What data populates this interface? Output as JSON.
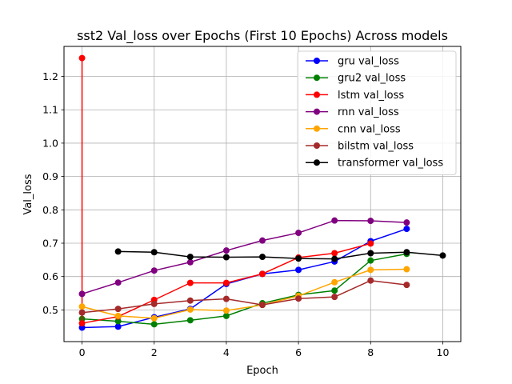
{
  "chart_data": {
    "type": "line",
    "title": "sst2 Val_loss over Epochs (First 10 Epochs) Across models",
    "xlabel": "Epoch",
    "ylabel": "Val_loss",
    "xlim": [
      -0.5,
      10.5
    ],
    "ylim": [
      0.405,
      1.29
    ],
    "xticks": [
      0,
      2,
      4,
      6,
      8,
      10
    ],
    "yticks": [
      0.5,
      0.6,
      0.7,
      0.8,
      0.9,
      1.0,
      1.1,
      1.2
    ],
    "grid": true,
    "legend_position": "top-right",
    "series": [
      {
        "name": "gru val_loss",
        "color": "#0000ff",
        "x": [
          0,
          1,
          2,
          3,
          4,
          5,
          6,
          7,
          8,
          9
        ],
        "y": [
          0.447,
          0.45,
          0.478,
          0.503,
          0.578,
          0.608,
          0.62,
          0.645,
          0.706,
          0.743
        ]
      },
      {
        "name": "gru2 val_loss",
        "color": "#008000",
        "x": [
          0,
          1,
          2,
          3,
          4,
          5,
          6,
          7,
          8,
          9
        ],
        "y": [
          0.473,
          0.466,
          0.457,
          0.469,
          0.482,
          0.52,
          0.545,
          0.558,
          0.648,
          0.668
        ]
      },
      {
        "name": "lstm val_loss",
        "color": "#ff0000",
        "x": [
          0,
          0,
          1,
          2,
          3,
          4,
          5,
          6,
          7,
          8
        ],
        "y": [
          1.255,
          0.46,
          0.48,
          0.53,
          0.581,
          0.581,
          0.608,
          0.657,
          0.67,
          0.699
        ]
      },
      {
        "name": "rnn val_loss",
        "color": "#800080",
        "x": [
          0,
          1,
          2,
          3,
          4,
          5,
          6,
          7,
          8,
          9
        ],
        "y": [
          0.548,
          0.582,
          0.618,
          0.643,
          0.678,
          0.708,
          0.731,
          0.768,
          0.767,
          0.762
        ]
      },
      {
        "name": "cnn val_loss",
        "color": "#ffa500",
        "x": [
          0,
          1,
          2,
          3,
          4,
          5,
          6,
          7,
          8,
          9
        ],
        "y": [
          0.51,
          0.482,
          0.475,
          0.501,
          0.498,
          0.515,
          0.542,
          0.583,
          0.62,
          0.622
        ]
      },
      {
        "name": "bilstm val_loss",
        "color": "#a52a2a",
        "x": [
          0,
          1,
          2,
          3,
          4,
          5,
          6,
          7,
          8,
          9
        ],
        "y": [
          0.492,
          0.503,
          0.518,
          0.528,
          0.533,
          0.515,
          0.534,
          0.539,
          0.588,
          0.575
        ]
      },
      {
        "name": "transformer val_loss",
        "color": "#000000",
        "x": [
          1,
          2,
          3,
          4,
          5,
          6,
          7,
          8,
          9,
          10
        ],
        "y": [
          0.675,
          0.673,
          0.659,
          0.658,
          0.659,
          0.654,
          0.653,
          0.67,
          0.673,
          0.663
        ]
      }
    ]
  }
}
